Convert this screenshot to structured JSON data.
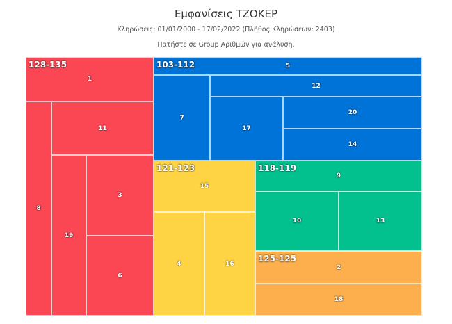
{
  "header": {
    "title": "Εμφανίσεις ΤΖΟΚΕΡ",
    "subtitle": "Κληρώσεις: 01/01/2000 - 17/02/2022 (Πλήθος Κληρώσεων: 2403)",
    "hint": "Πατήστε σε Group Αριθμών για ανάλυση."
  },
  "chart_data": {
    "type": "treemap",
    "title": "Εμφανίσεις ΤΖΟΚΕΡ",
    "groups": [
      {
        "label": "128-135",
        "color": "#fb4654",
        "items": [
          "1",
          "8",
          "11",
          "19",
          "3",
          "6"
        ]
      },
      {
        "label": "103-112",
        "color": "#0073d9",
        "items": [
          "5",
          "7",
          "12",
          "17",
          "20",
          "14"
        ]
      },
      {
        "label": "121-123",
        "color": "#ffd444",
        "items": [
          "15",
          "4",
          "16"
        ]
      },
      {
        "label": "118-119",
        "color": "#03c18f",
        "items": [
          "9",
          "10",
          "13"
        ]
      },
      {
        "label": "125-125",
        "color": "#fcaf4c",
        "items": [
          "2",
          "18"
        ]
      }
    ]
  }
}
